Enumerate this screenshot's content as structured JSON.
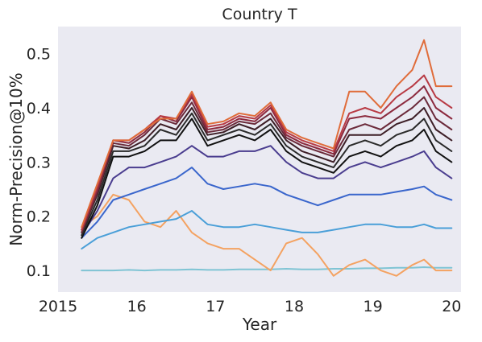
{
  "chart_data": {
    "type": "line",
    "title": "Country T",
    "xlabel": "Year",
    "ylabel": "Norm-Precision@10%",
    "xlim": [
      2015.0,
      2020.12
    ],
    "ylim": [
      0.06,
      0.55
    ],
    "grid": false,
    "background": "#eaeaf2",
    "x_ticks": [
      {
        "value": 2015,
        "label": "2015"
      },
      {
        "value": 2016,
        "label": "16"
      },
      {
        "value": 2017,
        "label": "17"
      },
      {
        "value": 2018,
        "label": "18"
      },
      {
        "value": 2019,
        "label": "19"
      },
      {
        "value": 2020,
        "label": "20"
      }
    ],
    "y_ticks": [
      {
        "value": 0.1,
        "label": "0.1"
      },
      {
        "value": 0.2,
        "label": "0.2"
      },
      {
        "value": 0.3,
        "label": "0.3"
      },
      {
        "value": 0.4,
        "label": "0.4"
      },
      {
        "value": 0.5,
        "label": "0.5"
      }
    ],
    "x": [
      2015.3,
      2015.5,
      2015.7,
      2015.9,
      2016.1,
      2016.3,
      2016.5,
      2016.7,
      2016.9,
      2017.1,
      2017.3,
      2017.5,
      2017.7,
      2017.9,
      2018.1,
      2018.3,
      2018.5,
      2018.7,
      2018.9,
      2019.1,
      2019.3,
      2019.5,
      2019.65,
      2019.8,
      2020.0
    ],
    "series": [
      {
        "color": "#7fc4d4",
        "values": [
          0.1,
          0.1,
          0.1,
          0.101,
          0.1,
          0.101,
          0.101,
          0.102,
          0.101,
          0.101,
          0.102,
          0.102,
          0.102,
          0.103,
          0.102,
          0.102,
          0.103,
          0.103,
          0.104,
          0.104,
          0.105,
          0.105,
          0.106,
          0.105,
          0.105
        ]
      },
      {
        "color": "#f4a261",
        "values": [
          0.18,
          0.2,
          0.24,
          0.23,
          0.19,
          0.18,
          0.21,
          0.17,
          0.15,
          0.14,
          0.14,
          0.12,
          0.1,
          0.15,
          0.16,
          0.13,
          0.09,
          0.11,
          0.12,
          0.1,
          0.09,
          0.11,
          0.12,
          0.1,
          0.1
        ]
      },
      {
        "color": "#4a9fd8",
        "values": [
          0.14,
          0.16,
          0.17,
          0.18,
          0.185,
          0.19,
          0.195,
          0.21,
          0.185,
          0.18,
          0.18,
          0.185,
          0.18,
          0.175,
          0.17,
          0.17,
          0.175,
          0.18,
          0.185,
          0.185,
          0.18,
          0.18,
          0.185,
          0.178,
          0.178
        ]
      },
      {
        "color": "#3a66cc",
        "values": [
          0.16,
          0.19,
          0.23,
          0.24,
          0.25,
          0.26,
          0.27,
          0.29,
          0.26,
          0.25,
          0.255,
          0.26,
          0.255,
          0.24,
          0.23,
          0.22,
          0.23,
          0.24,
          0.24,
          0.24,
          0.245,
          0.25,
          0.255,
          0.24,
          0.23
        ]
      },
      {
        "color": "#4a3d8f",
        "values": [
          0.165,
          0.21,
          0.27,
          0.29,
          0.29,
          0.3,
          0.31,
          0.33,
          0.31,
          0.31,
          0.32,
          0.32,
          0.33,
          0.3,
          0.28,
          0.27,
          0.27,
          0.29,
          0.3,
          0.29,
          0.3,
          0.31,
          0.32,
          0.29,
          0.27
        ]
      },
      {
        "color": "#111111",
        "values": [
          0.16,
          0.22,
          0.31,
          0.31,
          0.32,
          0.34,
          0.34,
          0.38,
          0.33,
          0.34,
          0.35,
          0.34,
          0.36,
          0.32,
          0.3,
          0.29,
          0.28,
          0.31,
          0.32,
          0.31,
          0.33,
          0.34,
          0.36,
          0.32,
          0.3
        ]
      },
      {
        "color": "#2a2a2a",
        "values": [
          0.165,
          0.23,
          0.32,
          0.32,
          0.33,
          0.36,
          0.35,
          0.39,
          0.34,
          0.35,
          0.36,
          0.35,
          0.37,
          0.33,
          0.31,
          0.3,
          0.29,
          0.33,
          0.34,
          0.33,
          0.35,
          0.36,
          0.38,
          0.34,
          0.32
        ]
      },
      {
        "color": "#3d1e26",
        "values": [
          0.17,
          0.24,
          0.33,
          0.325,
          0.34,
          0.37,
          0.36,
          0.4,
          0.35,
          0.355,
          0.37,
          0.36,
          0.38,
          0.34,
          0.32,
          0.31,
          0.3,
          0.35,
          0.35,
          0.35,
          0.37,
          0.38,
          0.4,
          0.36,
          0.34
        ]
      },
      {
        "color": "#6b2a3a",
        "values": [
          0.17,
          0.245,
          0.335,
          0.33,
          0.35,
          0.38,
          0.37,
          0.41,
          0.355,
          0.36,
          0.375,
          0.37,
          0.39,
          0.345,
          0.33,
          0.32,
          0.31,
          0.36,
          0.37,
          0.36,
          0.38,
          0.4,
          0.42,
          0.38,
          0.36
        ]
      },
      {
        "color": "#8c2a3e",
        "values": [
          0.175,
          0.25,
          0.34,
          0.335,
          0.355,
          0.385,
          0.375,
          0.42,
          0.36,
          0.365,
          0.38,
          0.375,
          0.4,
          0.35,
          0.335,
          0.325,
          0.315,
          0.38,
          0.385,
          0.38,
          0.4,
          0.42,
          0.44,
          0.4,
          0.38
        ]
      },
      {
        "color": "#b83a44",
        "values": [
          0.175,
          0.255,
          0.34,
          0.34,
          0.36,
          0.385,
          0.38,
          0.425,
          0.365,
          0.37,
          0.385,
          0.38,
          0.405,
          0.355,
          0.34,
          0.33,
          0.32,
          0.39,
          0.4,
          0.39,
          0.42,
          0.44,
          0.46,
          0.42,
          0.4
        ]
      },
      {
        "color": "#e06c3a",
        "values": [
          0.18,
          0.26,
          0.34,
          0.34,
          0.36,
          0.38,
          0.38,
          0.43,
          0.37,
          0.375,
          0.39,
          0.385,
          0.41,
          0.36,
          0.345,
          0.335,
          0.325,
          0.43,
          0.43,
          0.4,
          0.44,
          0.47,
          0.525,
          0.44,
          0.44
        ]
      }
    ]
  }
}
